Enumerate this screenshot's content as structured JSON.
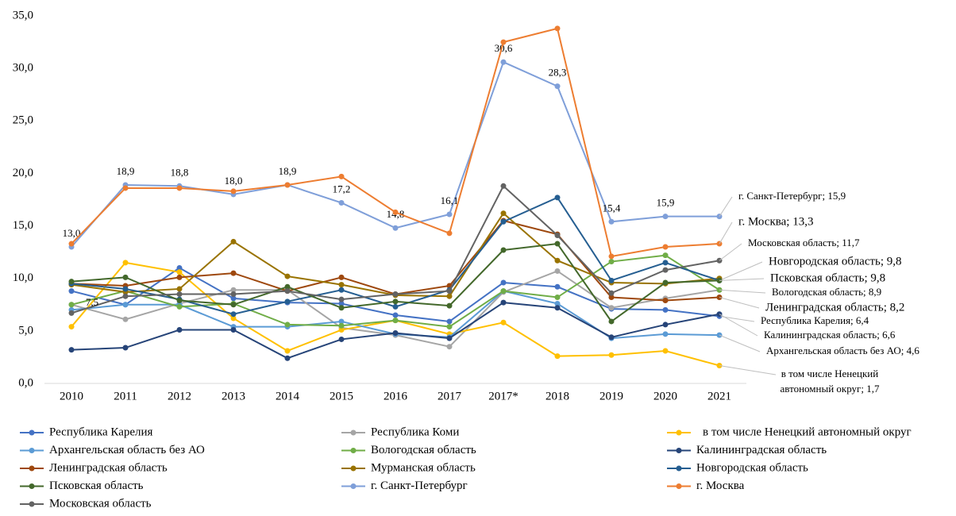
{
  "chart_data": {
    "type": "line",
    "categories": [
      "2010",
      "2011",
      "2012",
      "2013",
      "2014",
      "2015",
      "2016",
      "2017",
      "2017*",
      "2018",
      "2019",
      "2020",
      "2021"
    ],
    "ylim": [
      0,
      35
    ],
    "yticks": [
      {
        "value": 0,
        "label": "0,0"
      },
      {
        "value": 5,
        "label": "5,0"
      },
      {
        "value": 10,
        "label": "10,0"
      },
      {
        "value": 15,
        "label": "15,0"
      },
      {
        "value": 20,
        "label": "20,0"
      },
      {
        "value": 25,
        "label": "25,0"
      },
      {
        "value": 30,
        "label": "30,0"
      },
      {
        "value": 35,
        "label": "35,0"
      }
    ],
    "grid": false,
    "legend": "bottom",
    "annotations": [
      "7,5"
    ],
    "series": [
      {
        "name": "Республика Карелия",
        "color": "#4472c4",
        "values": [
          8.8,
          7.5,
          11.0,
          8.1,
          7.7,
          7.6,
          6.5,
          5.9,
          9.6,
          9.2,
          7.1,
          7.0,
          6.4
        ],
        "end_label": [
          "Республика Карелия; 6,4"
        ]
      },
      {
        "name": "Республика Коми",
        "color": "#a5a5a5",
        "values": [
          7.5,
          6.1,
          7.6,
          8.9,
          8.9,
          5.3,
          4.6,
          3.5,
          8.7,
          10.7,
          7.2,
          8.1,
          8.9
        ]
      },
      {
        "name": "в том числе Ненецкий автономный округ",
        "color": "#ffc000",
        "values": [
          5.4,
          11.5,
          10.6,
          6.2,
          3.1,
          5.1,
          6.0,
          4.7,
          5.8,
          2.6,
          2.7,
          3.1,
          1.7
        ],
        "end_label": [
          "в том числе Ненецкий",
          "автономный округ; 1,7"
        ]
      },
      {
        "name": "Архангельская область без АО",
        "color": "#5b9bd5",
        "values": [
          7.0,
          7.5,
          7.5,
          5.4,
          5.4,
          5.9,
          4.7,
          4.4,
          8.8,
          7.6,
          4.3,
          4.7,
          4.6
        ],
        "end_label": [
          "Архангельская область без АО; 4,6"
        ]
      },
      {
        "name": "Вологодская область",
        "color": "#70ad47",
        "values": [
          7.5,
          8.8,
          7.3,
          7.6,
          5.6,
          5.5,
          6.0,
          5.4,
          8.8,
          8.2,
          11.6,
          12.2,
          8.9
        ],
        "end_label": [
          "Вологодская область; 8,9"
        ]
      },
      {
        "name": "Калининградская  область",
        "color": "#264478",
        "values": [
          3.2,
          3.4,
          5.1,
          5.1,
          2.4,
          4.2,
          4.8,
          4.3,
          7.7,
          7.2,
          4.4,
          5.6,
          6.6
        ],
        "end_label": [
          "Калининградская  область; 6,6"
        ]
      },
      {
        "name": "Ленинградская область",
        "color": "#9e480e",
        "values": [
          9.5,
          9.3,
          10.1,
          10.5,
          8.8,
          10.1,
          8.5,
          9.3,
          15.5,
          14.2,
          8.2,
          7.9,
          8.2
        ],
        "end_label": [
          "Ленинградская область; 8,2"
        ]
      },
      {
        "name": "Мурманская область",
        "color": "#997300",
        "values": [
          9.4,
          8.7,
          9.0,
          13.5,
          10.2,
          9.4,
          8.4,
          8.3,
          16.2,
          11.7,
          9.6,
          9.5,
          10.0
        ]
      },
      {
        "name": "Новгородская область",
        "color": "#255e91",
        "values": [
          9.5,
          9.0,
          8.0,
          6.6,
          7.8,
          8.9,
          7.3,
          8.9,
          15.4,
          17.7,
          9.8,
          11.5,
          9.8
        ],
        "end_label": [
          "Новгородская область; 9,8"
        ]
      },
      {
        "name": "Псковская область",
        "color": "#43682b",
        "values": [
          9.7,
          10.1,
          7.9,
          7.5,
          9.2,
          7.2,
          7.8,
          7.4,
          12.7,
          13.3,
          5.9,
          9.6,
          9.8
        ],
        "end_label": [
          "Псковская область; 9,8"
        ]
      },
      {
        "name": "г. Санкт-Петербург",
        "color": "#7f9fd9",
        "values": [
          13.0,
          18.9,
          18.8,
          18.0,
          18.9,
          17.2,
          14.8,
          16.1,
          30.6,
          28.3,
          15.4,
          15.9,
          15.9
        ],
        "value_labels": [
          "13,0",
          "18,9",
          "18,8",
          "18,0",
          "18,9",
          "17,2",
          "14,8",
          "16,1",
          "30,6",
          "28,3",
          "15,4",
          "15,9",
          null
        ],
        "end_label": [
          "г. Санкт-Петербург; 15,9"
        ]
      },
      {
        "name": "г. Москва",
        "color": "#ed7d31",
        "values": [
          13.3,
          18.6,
          18.6,
          18.3,
          18.9,
          19.7,
          16.3,
          14.3,
          32.5,
          33.8,
          12.1,
          13.0,
          13.3
        ],
        "end_label": [
          "г. Москва; 13,3"
        ]
      },
      {
        "name": "Московская область",
        "color": "#636363",
        "values": [
          6.7,
          8.3,
          8.5,
          8.5,
          8.8,
          8.0,
          8.5,
          8.8,
          18.8,
          14.1,
          8.6,
          10.8,
          11.7
        ],
        "end_label": [
          "Московская область; 11,7"
        ]
      }
    ]
  }
}
